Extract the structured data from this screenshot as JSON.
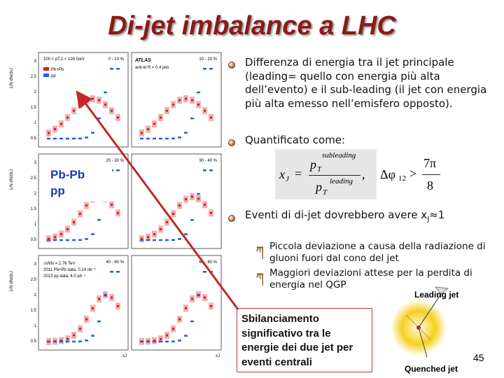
{
  "title": "Di-jet imbalance a LHC",
  "plot": {
    "kinematic_range": "100 < pT,1 < 126 GeV",
    "legend": [
      "Pb+Pb",
      "pp"
    ],
    "experiment": "ATLAS",
    "jet_algorithm": "anti-kt R = 0.4 jets",
    "energy": "√sNN = 2.76 TeV",
    "pbpb_data": "2011 Pb+Pb data, 0.14 nb⁻¹",
    "pp_data": "2013 pp data, 4.0 pb⁻¹",
    "y_axis_label": "1/N dN/dxJ",
    "x_axis_label": "xJ",
    "y_tick_labels": [
      "3",
      "2.5",
      "2",
      "1.5",
      "1",
      "0.5"
    ],
    "panels": [
      "0 - 10 %",
      "10 - 20 %",
      "20 - 30 %",
      "30 - 40 %",
      "40 - 60 %",
      "60 - 80 %"
    ]
  },
  "label_box": [
    "Pb-Pb",
    "pp"
  ],
  "bullet_1": "Differenza di energia tra il jet principale (leading= quello con energia più alta dell’evento) e il sub-leading (il jet con energia più alta emesso nell’emisfero opposto).",
  "bullet_2": "Quantificato come:",
  "formula": {
    "lhs": "x",
    "lhs_sub": "J",
    "eq": "=",
    "num": "p",
    "num_sub": "T",
    "num_sup": "subleading",
    "den": "p",
    "den_sub": "T",
    "den_sup": "leading",
    "comma": ",",
    "cond": "Δφ",
    "cond_sub": "12",
    "gt": ">",
    "rhs_num": "7π",
    "rhs_den": "8"
  },
  "bullet_3": {
    "text": "Eventi di di-jet dovrebbero avere x",
    "sub": "J",
    "tail": "≈1"
  },
  "sub_bullets": [
    "Piccola deviazione a causa della radiazione di gluoni fuori dal cono del jet",
    "Maggiori deviazioni attese per la perdita di energia nel QGP"
  ],
  "callout": "Sbilanciamento significativo tra le energie dei due jet per eventi centrali",
  "image_labels": {
    "leading": "Leading jet",
    "quenched": "Quenched jet"
  },
  "page_number": "45"
}
